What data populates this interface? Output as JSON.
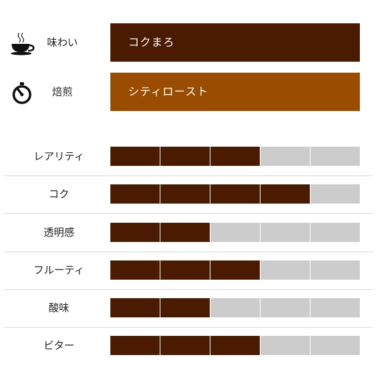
{
  "info": [
    {
      "id": "flavor",
      "icon": "coffee-cup-icon",
      "label": "味わい",
      "value": "コクまろ",
      "color": "#4a1b00"
    },
    {
      "id": "roast",
      "icon": "timer-icon",
      "label": "焙煎",
      "value": "シティロースト",
      "color": "#9a4c00"
    }
  ],
  "scale_max": 5,
  "colors": {
    "filled": "#4a1b00",
    "empty": "#cccccc"
  },
  "ratings": [
    {
      "label": "レアリティ",
      "value": 3
    },
    {
      "label": "コク",
      "value": 4
    },
    {
      "label": "透明感",
      "value": 2
    },
    {
      "label": "フルーティ",
      "value": 3
    },
    {
      "label": "酸味",
      "value": 2
    },
    {
      "label": "ビター",
      "value": 3
    }
  ]
}
